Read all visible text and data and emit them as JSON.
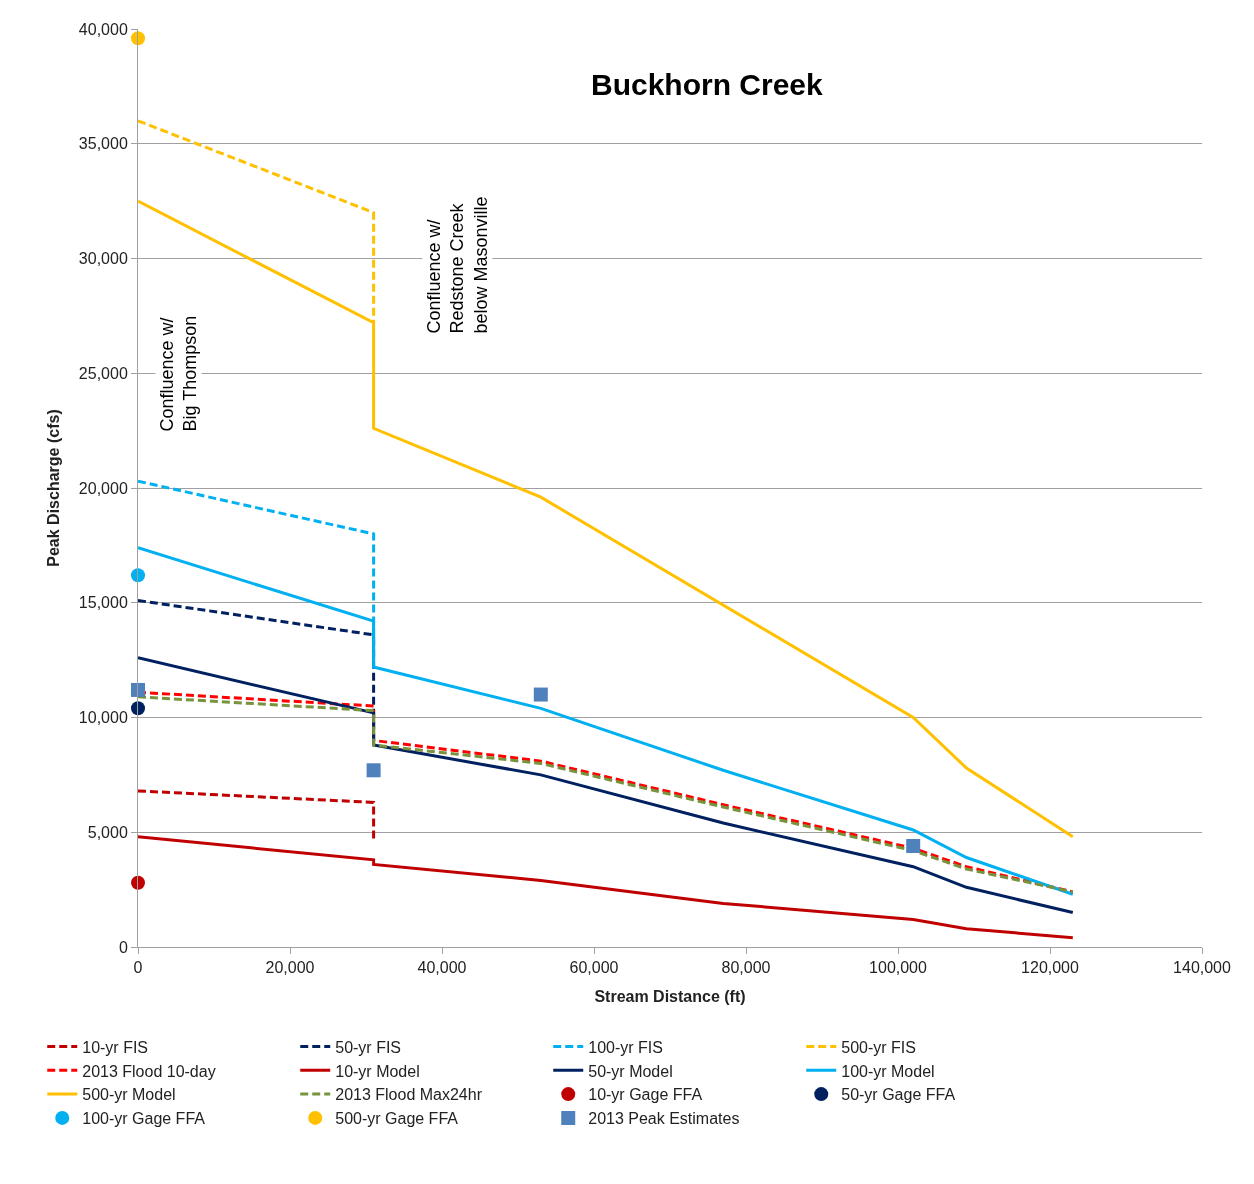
{
  "chart_data": {
    "type": "line",
    "title": "Buckhorn Creek",
    "xlabel": "Stream Distance (ft)",
    "ylabel": "Peak Discharge (cfs)",
    "xlim": [
      0,
      140000
    ],
    "xticks": [
      0,
      {
        "value": 20000,
        "label": "20,000"
      },
      {
        "value": 40000,
        "label": "40,000"
      },
      {
        "value": 60000,
        "label": "60,000"
      },
      {
        "value": 80000,
        "label": "80,000"
      },
      {
        "value": 100000,
        "label": "100,000"
      },
      {
        "value": 120000,
        "label": "120,000"
      },
      {
        "value": 140000,
        "label": "140,000"
      }
    ],
    "ylim": [
      0,
      40000
    ],
    "yticks": [
      0,
      {
        "value": 5000,
        "label": "5,000"
      },
      {
        "value": 10000,
        "label": "10,000"
      },
      {
        "value": 15000,
        "label": "15,000"
      },
      {
        "value": 20000,
        "label": "20,000"
      },
      {
        "value": 25000,
        "label": "25,000"
      },
      {
        "value": 30000,
        "label": "30,000"
      },
      {
        "value": 35000,
        "label": "35,000"
      },
      {
        "value": 40000,
        "label": "40,000"
      }
    ],
    "grid": "y",
    "legend": "bottom",
    "annotations": [
      "Confluence w/\nBig Thompson",
      "Confluence w/\nRedstone Creek\nbelow Masonville"
    ],
    "series": [
      {
        "name": "10-yr FIS",
        "line_style": "dashed",
        "color": "#c00000",
        "x": [
          0,
          31000,
          31000
        ],
        "values": [
          6800,
          6300,
          4600
        ]
      },
      {
        "name": "50-yr FIS",
        "line_style": "dashed",
        "color": "#002060",
        "x": [
          0,
          31000,
          31000
        ],
        "values": [
          15100,
          13600,
          9000
        ]
      },
      {
        "name": "100-yr FIS",
        "line_style": "dashed",
        "color": "#00b0f0",
        "x": [
          0,
          31000,
          31000
        ],
        "values": [
          20300,
          18000,
          12200
        ]
      },
      {
        "name": "500-yr FIS",
        "line_style": "dashed",
        "color": "#ffc000",
        "x": [
          0,
          31000,
          31000
        ],
        "values": [
          36000,
          32000,
          27200
        ]
      },
      {
        "name": "2013 Flood 10-day",
        "line_style": "dashed",
        "color": "#ff0000",
        "x": [
          0,
          31000,
          31000,
          53000,
          77000,
          102000,
          109000,
          123000
        ],
        "values": [
          11100,
          10500,
          9000,
          8100,
          6200,
          4300,
          3500,
          2400
        ]
      },
      {
        "name": "10-yr Model",
        "line_style": "solid",
        "color": "#c00000",
        "x": [
          0,
          31000,
          31000,
          53000,
          77000,
          102000,
          109000,
          123000
        ],
        "values": [
          4800,
          3800,
          3600,
          2900,
          1900,
          1200,
          800,
          400
        ]
      },
      {
        "name": "50-yr Model",
        "line_style": "solid",
        "color": "#002060",
        "x": [
          0,
          31000,
          31000,
          53000,
          77000,
          102000,
          109000,
          123000
        ],
        "values": [
          12600,
          10200,
          8800,
          7500,
          5400,
          3500,
          2600,
          1500
        ]
      },
      {
        "name": "100-yr Model",
        "line_style": "solid",
        "color": "#00b0f0",
        "x": [
          0,
          31000,
          31000,
          53000,
          77000,
          102000,
          109000,
          123000
        ],
        "values": [
          17400,
          14200,
          12200,
          10400,
          7700,
          5100,
          3900,
          2300
        ]
      },
      {
        "name": "500-yr Model",
        "line_style": "solid",
        "color": "#ffc000",
        "x": [
          0,
          31000,
          31000,
          53000,
          102000,
          109000,
          123000
        ],
        "values": [
          32500,
          27200,
          22600,
          19600,
          10000,
          7800,
          4800
        ]
      },
      {
        "name": "2013 Flood Max24hr",
        "line_style": "dashed",
        "color": "#77933c",
        "x": [
          0,
          31000,
          31000,
          53000,
          77000,
          102000,
          109000,
          123000
        ],
        "values": [
          10900,
          10300,
          8800,
          8000,
          6100,
          4200,
          3400,
          2400
        ]
      },
      {
        "name": "10-yr Gage FFA",
        "type": "scatter",
        "marker": "circle",
        "color": "#c00000",
        "x": [
          0
        ],
        "values": [
          2800
        ]
      },
      {
        "name": "50-yr Gage FFA",
        "type": "scatter",
        "marker": "circle",
        "color": "#002060",
        "x": [
          0
        ],
        "values": [
          10400
        ]
      },
      {
        "name": "100-yr Gage FFA",
        "type": "scatter",
        "marker": "circle",
        "color": "#00b0f0",
        "x": [
          0
        ],
        "values": [
          16200
        ]
      },
      {
        "name": "500-yr Gage FFA",
        "type": "scatter",
        "marker": "circle",
        "color": "#ffc000",
        "x": [
          0
        ],
        "values": [
          39600
        ]
      },
      {
        "name": "2013 Peak Estimates",
        "type": "scatter",
        "marker": "square",
        "color": "#4f81bd",
        "x": [
          0,
          31000,
          53000,
          102000
        ],
        "values": [
          11200,
          7700,
          11000,
          4400
        ]
      }
    ]
  }
}
